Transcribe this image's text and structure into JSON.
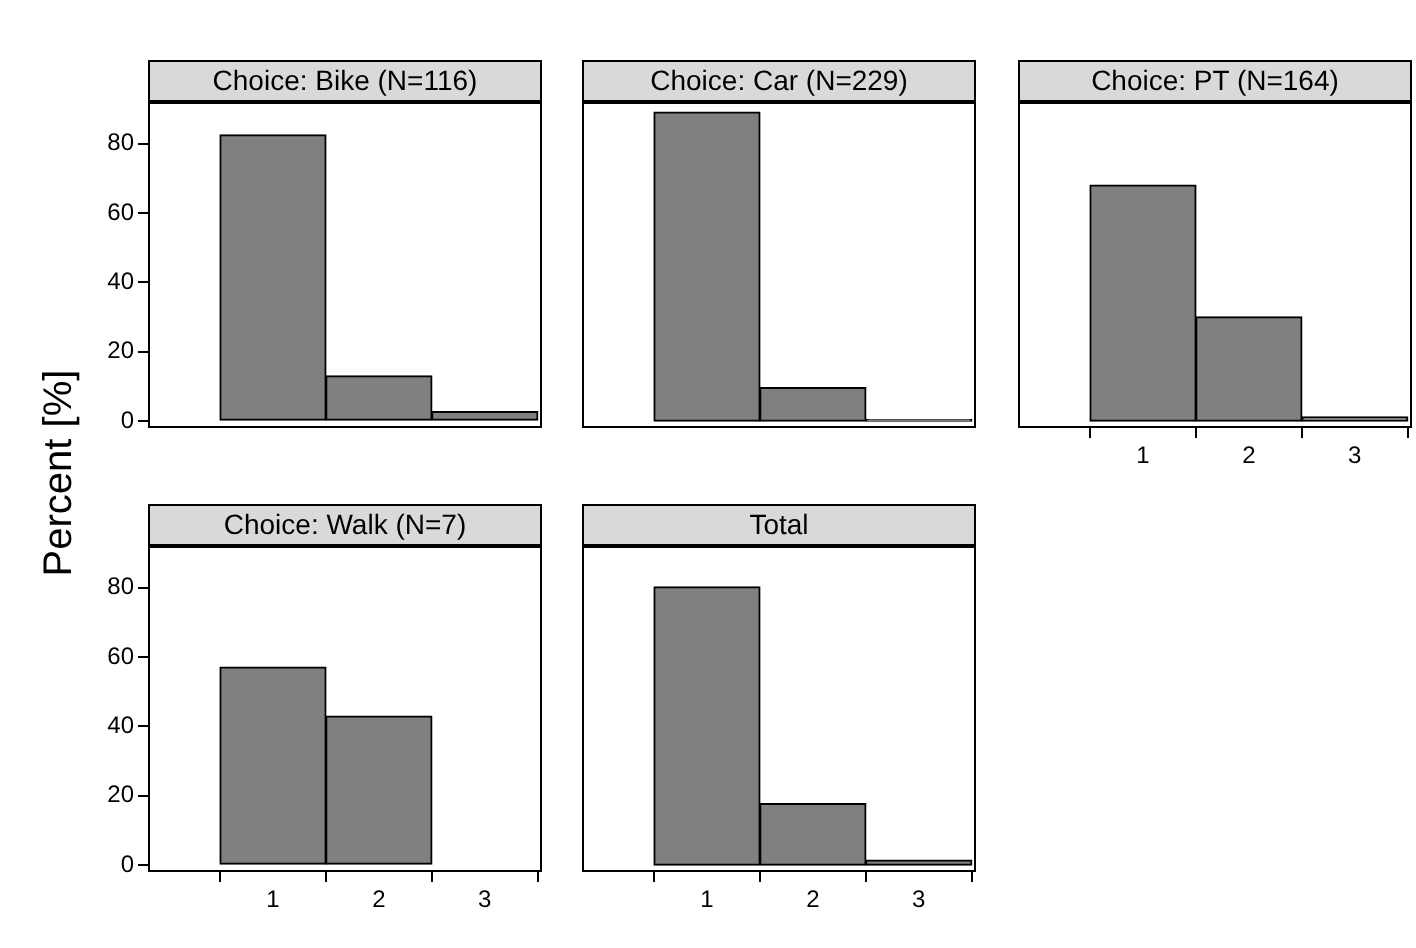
{
  "chart_data": [
    {
      "type": "histogram",
      "title": "Choice: Bike (N=116)",
      "ylabel": "Percent [%]",
      "bins": [
        0.5,
        1.5,
        2.5,
        3.5
      ],
      "values": [
        82.5,
        13,
        2.7
      ],
      "color": "#808080",
      "xlim": [
        -0.18,
        3.54
      ],
      "ylim": [
        -2,
        92
      ],
      "xticks": [
        1,
        2,
        3
      ],
      "yticks": [
        0,
        20,
        40,
        60,
        80
      ],
      "tick_labels": "y"
    },
    {
      "type": "histogram",
      "title": "Choice: Car (N=229)",
      "bins": [
        0.5,
        1.5,
        2.5,
        3.5
      ],
      "values": [
        89.1,
        9.6,
        0.4
      ],
      "color": "#808080",
      "xlim": [
        -0.18,
        3.54
      ],
      "ylim": [
        -2,
        92
      ],
      "xticks": [
        1,
        2,
        3
      ],
      "yticks": [
        0,
        20,
        40,
        60,
        80
      ],
      "tick_labels": false
    },
    {
      "type": "histogram",
      "title": "Choice: PT (N=164)",
      "bins": [
        0.5,
        1.5,
        2.5,
        3.5
      ],
      "values": [
        68,
        30,
        1.2
      ],
      "color": "#808080",
      "xlim": [
        -0.18,
        3.54
      ],
      "ylim": [
        -2,
        92
      ],
      "xticks": [
        1,
        2,
        3
      ],
      "yticks": [
        0,
        20,
        40,
        60,
        80
      ],
      "tick_labels": "x"
    },
    {
      "type": "histogram",
      "title": "Choice: Walk (N=7)",
      "bins": [
        0.5,
        1.5,
        2.5,
        3.5
      ],
      "values": [
        57.1,
        42.9,
        0
      ],
      "color": "#808080",
      "xlim": [
        -0.18,
        3.54
      ],
      "ylim": [
        -2,
        92
      ],
      "xticks": [
        1,
        2,
        3
      ],
      "yticks": [
        0,
        20,
        40,
        60,
        80
      ]
    },
    {
      "type": "histogram",
      "title": "Total",
      "bins": [
        0.5,
        1.5,
        2.5,
        3.5
      ],
      "values": [
        80.2,
        17.7,
        1.4
      ],
      "color": "#808080",
      "xlim": [
        -0.18,
        3.54
      ],
      "ylim": [
        -2,
        92
      ],
      "xticks": [
        1,
        2,
        3
      ],
      "yticks": [
        0,
        20,
        40,
        60,
        80
      ],
      "tick_labels": "x"
    }
  ]
}
